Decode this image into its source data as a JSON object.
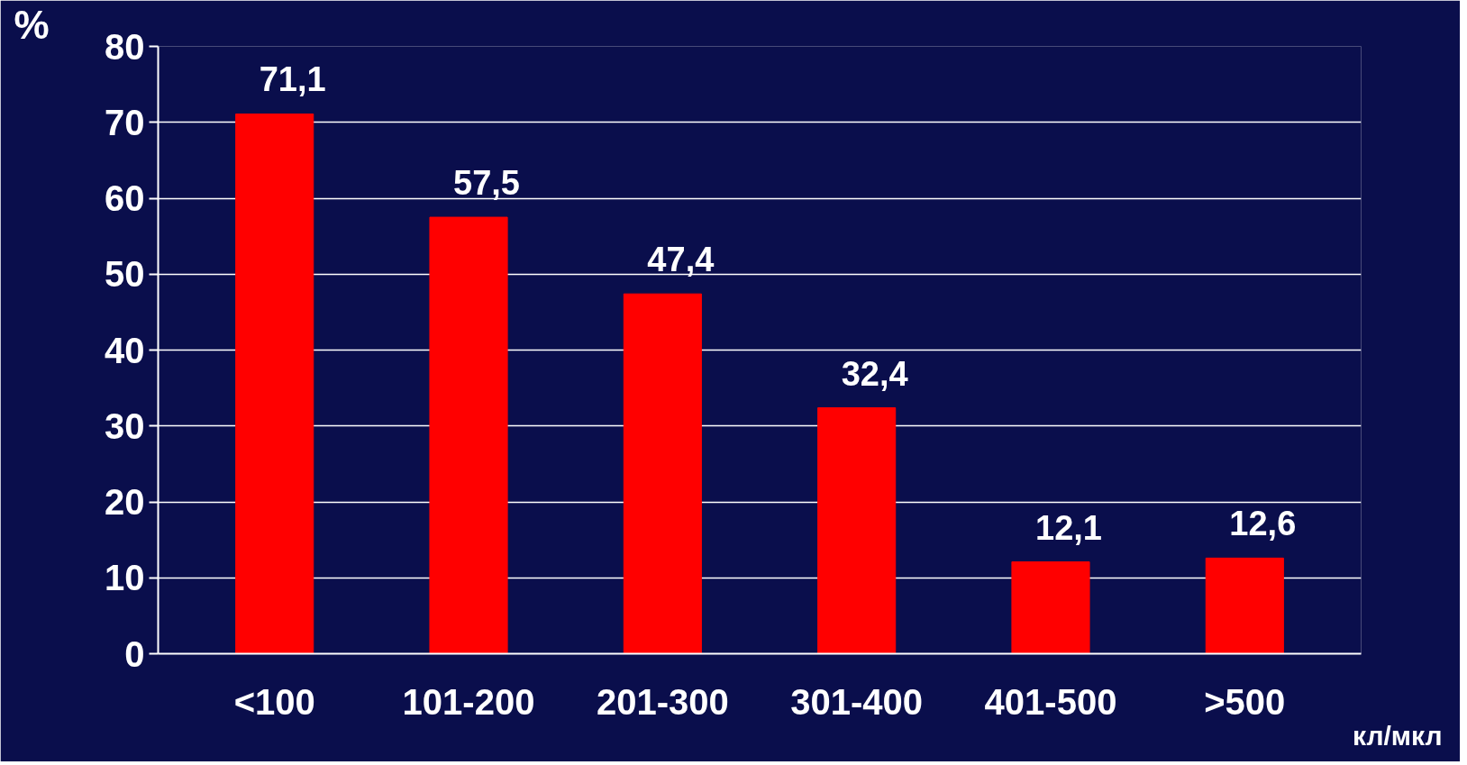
{
  "chart_data": {
    "type": "bar",
    "ylabel": "%",
    "xlabel": "кл/мкл",
    "categories": [
      "<100",
      "101-200",
      "201-300",
      "301-400",
      "401-500",
      ">500"
    ],
    "values": [
      71.1,
      57.5,
      47.4,
      32.4,
      12.1,
      12.6
    ],
    "value_labels": [
      "71,1",
      "57,5",
      "47,4",
      "32,4",
      "12,1",
      "12,6"
    ],
    "color": "#ff0000",
    "ylim": [
      0,
      80
    ],
    "yticks": [
      0,
      10,
      20,
      30,
      40,
      50,
      60,
      70,
      80
    ],
    "grid": "y"
  }
}
